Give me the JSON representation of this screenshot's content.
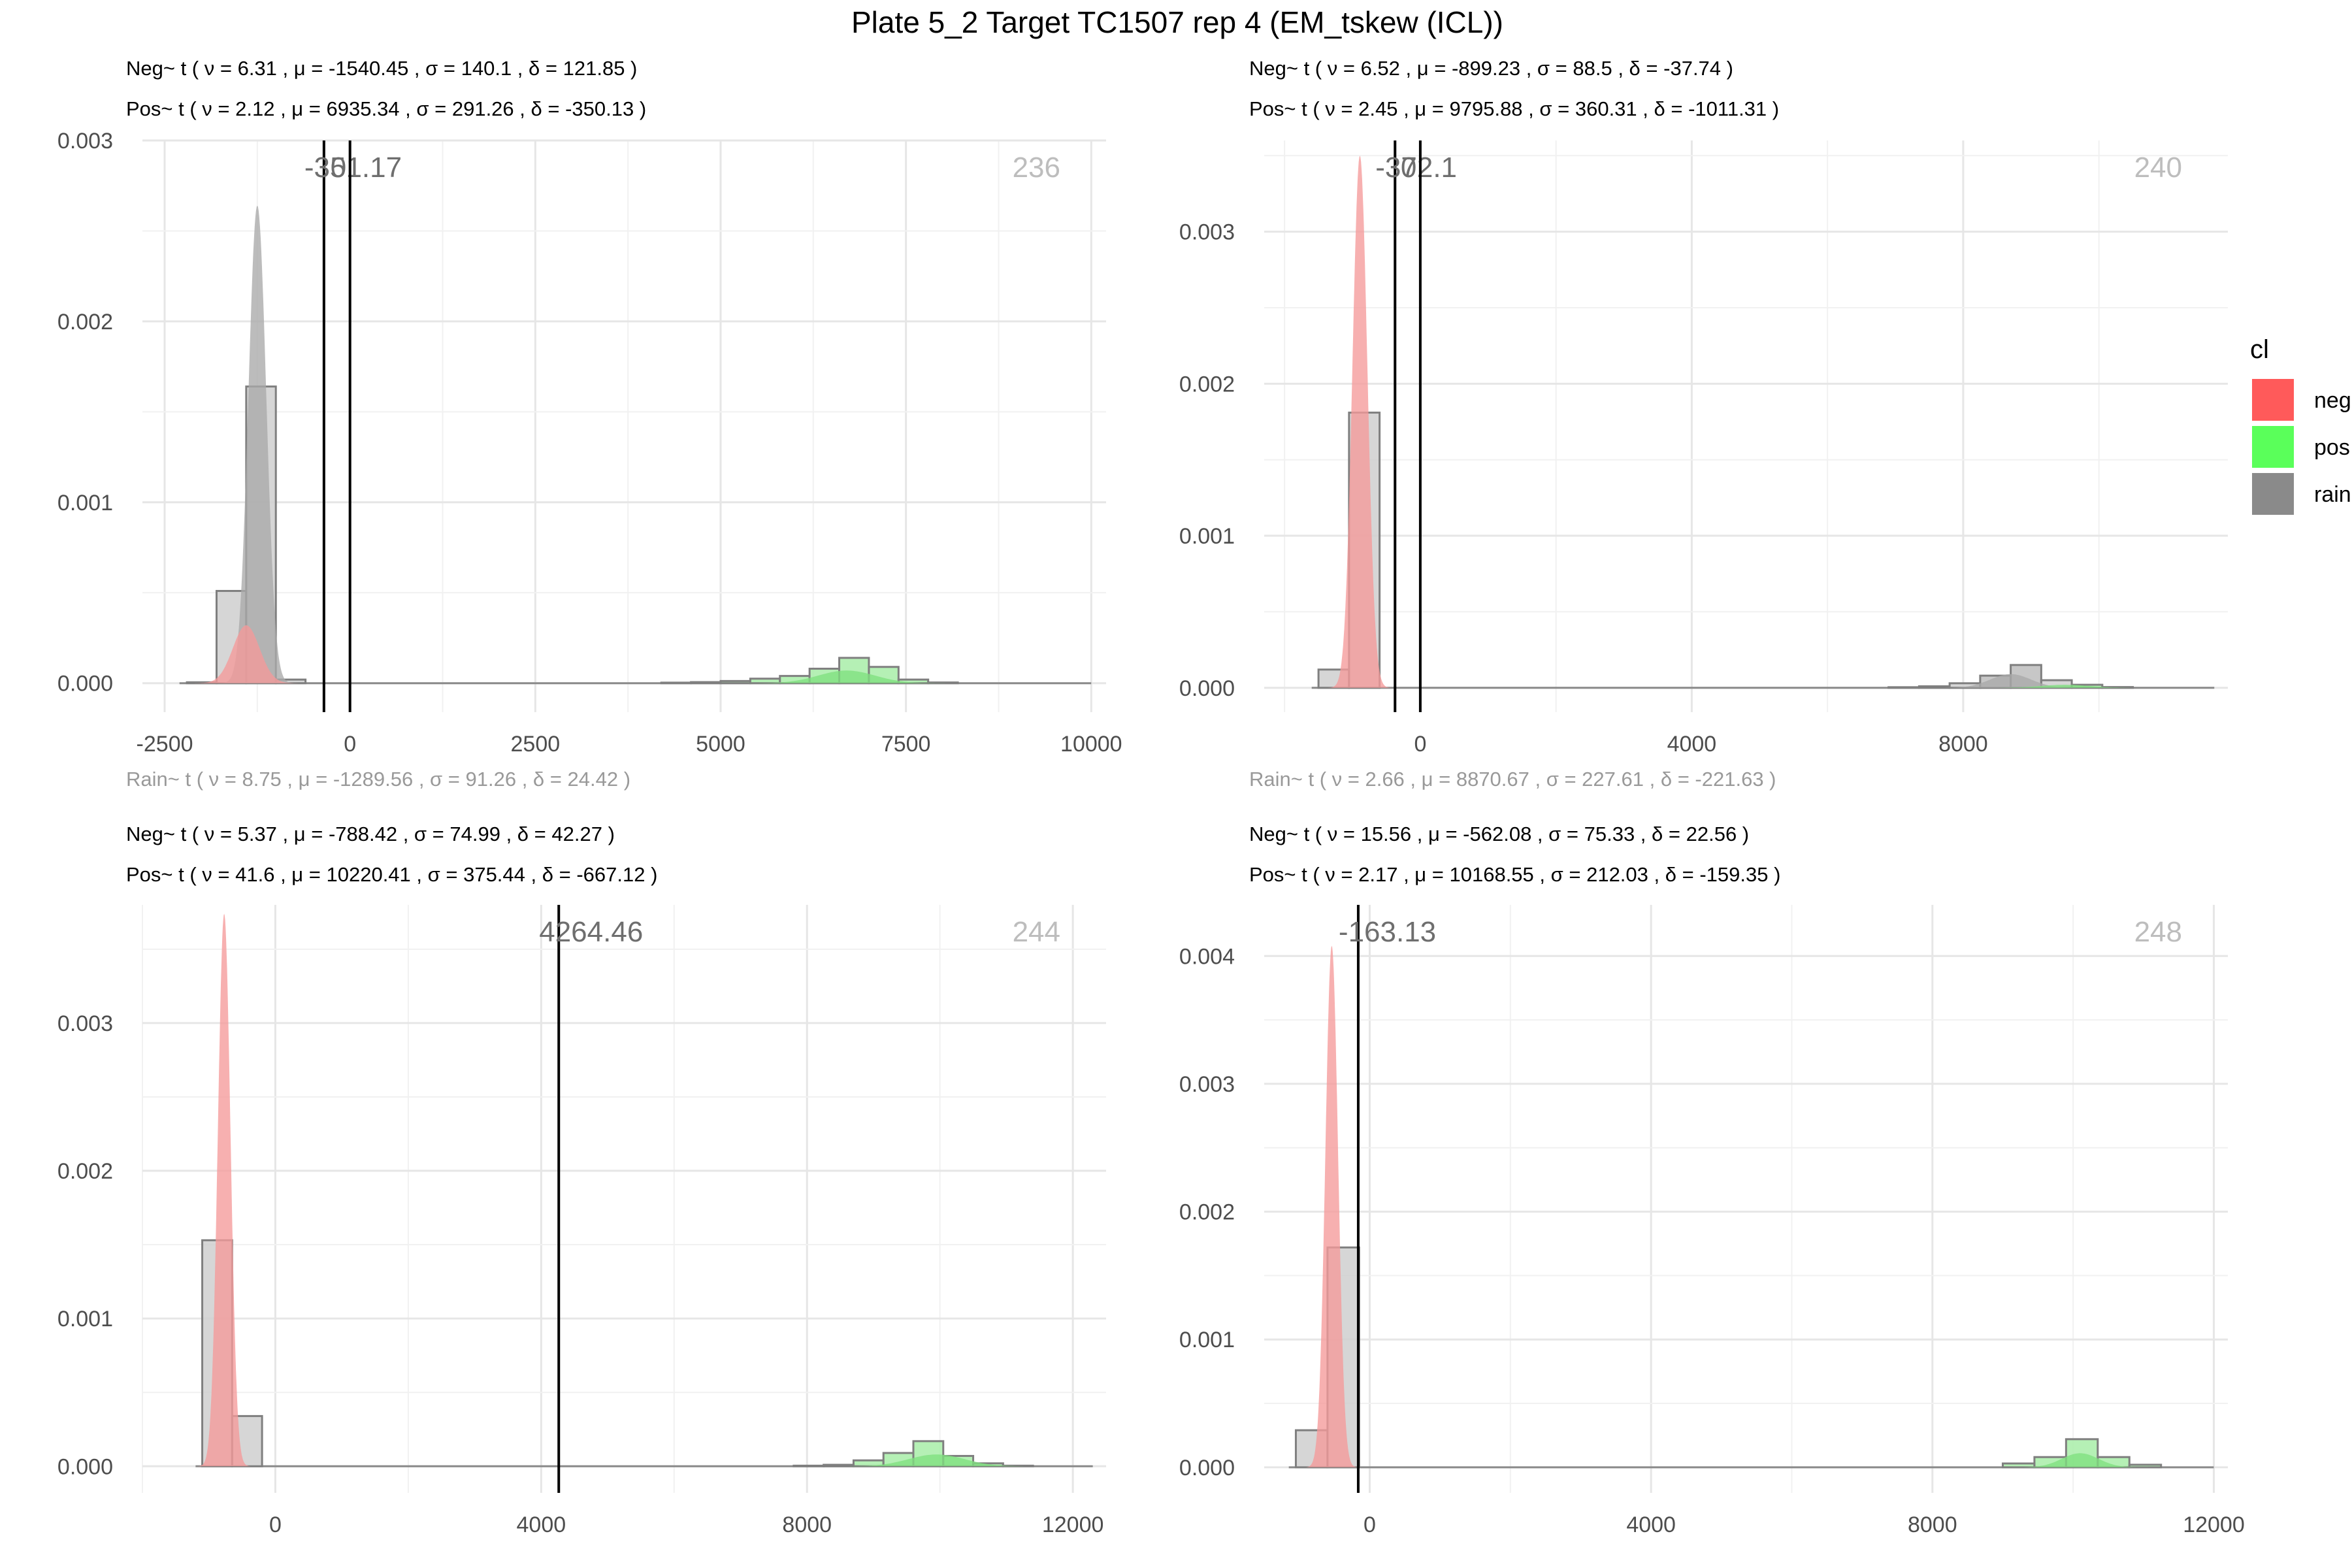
{
  "title": "Plate 5_2 Target TC1507 rep 4 (EM_tskew (ICL))",
  "legend": {
    "title": "cl",
    "items": [
      {
        "label": "neg",
        "color": "#ff5a5a"
      },
      {
        "label": "pos",
        "color": "#5aff5a"
      },
      {
        "label": "rain",
        "color": "#8a8a8a"
      }
    ]
  },
  "chart_data": [
    {
      "type": "histogram",
      "stats": {
        "neg": "Neg~ t ( ν = 6.31 , μ = -1540.45 , σ = 140.1 , δ = 121.85 )",
        "pos": "Pos~ t ( ν = 2.12 , μ = 6935.34 , σ = 291.26 , δ = -350.13 )",
        "rain": "Rain~ t ( ν = 8.75 , μ = -1289.56 , σ = 91.26 , δ = 24.42 )"
      },
      "count": "236",
      "thresholds": [
        {
          "x": -351.17,
          "label": "-351.17"
        },
        {
          "x": 0,
          "label": "0"
        }
      ],
      "xlim": [
        -2800,
        10200
      ],
      "ylim": [
        -0.00016,
        0.003
      ],
      "xticks": [
        {
          "v": -2500,
          "label": "-2500"
        },
        {
          "v": 0,
          "label": "0"
        },
        {
          "v": 2500,
          "label": "2500"
        },
        {
          "v": 5000,
          "label": "5000"
        },
        {
          "v": 7500,
          "label": "7500"
        },
        {
          "v": 10000,
          "label": "10000"
        }
      ],
      "yticks": [
        {
          "v": 0,
          "label": "0.000"
        },
        {
          "v": 0.001,
          "label": "0.001"
        },
        {
          "v": 0.002,
          "label": "0.002"
        },
        {
          "v": 0.003,
          "label": "0.003"
        }
      ],
      "bins": [
        {
          "x0": -2200,
          "x1": -1800,
          "y": 5e-06,
          "fill": "#cfcfcf"
        },
        {
          "x0": -1800,
          "x1": -1400,
          "y": 0.00051,
          "fill": "#cfcfcf"
        },
        {
          "x0": -1400,
          "x1": -1000,
          "y": 0.00164,
          "fill": "#cfcfcf"
        },
        {
          "x0": -1000,
          "x1": -600,
          "y": 2e-05,
          "fill": "#cfcfcf"
        },
        {
          "x0": 4200,
          "x1": 4600,
          "y": 3e-06,
          "fill": "#a8eda8"
        },
        {
          "x0": 4600,
          "x1": 5000,
          "y": 6e-06,
          "fill": "#a8eda8"
        },
        {
          "x0": 5000,
          "x1": 5400,
          "y": 1.2e-05,
          "fill": "#a8eda8"
        },
        {
          "x0": 5400,
          "x1": 5800,
          "y": 2.5e-05,
          "fill": "#a8eda8"
        },
        {
          "x0": 5800,
          "x1": 6200,
          "y": 4e-05,
          "fill": "#a8eda8"
        },
        {
          "x0": 6200,
          "x1": 6600,
          "y": 8e-05,
          "fill": "#a8eda8"
        },
        {
          "x0": 6600,
          "x1": 7000,
          "y": 0.00014,
          "fill": "#a8eda8"
        },
        {
          "x0": 7000,
          "x1": 7400,
          "y": 9e-05,
          "fill": "#a8eda8"
        },
        {
          "x0": 7400,
          "x1": 7800,
          "y": 2e-05,
          "fill": "#a8eda8"
        },
        {
          "x0": 7800,
          "x1": 8200,
          "y": 4e-06,
          "fill": "#a8eda8"
        }
      ],
      "densities": [
        {
          "cl": "rain",
          "mu": -1250,
          "sigma": 120,
          "peak": 0.00264
        },
        {
          "cl": "neg",
          "mu": -1400,
          "sigma": 180,
          "peak": 0.00032
        },
        {
          "cl": "pos",
          "mu": 6700,
          "sigma": 380,
          "peak": 7e-05
        }
      ]
    },
    {
      "type": "histogram",
      "stats": {
        "neg": "Neg~ t ( ν = 6.52 , μ = -899.23 , σ = 88.5 , δ = -37.74 )",
        "pos": "Pos~ t ( ν = 2.45 , μ = 9795.88 , σ = 360.31 , δ = -1011.31 )",
        "rain": "Rain~ t ( ν = 2.66 , μ = 8870.67 , σ = 227.61 , δ = -221.63 )"
      },
      "count": "240",
      "thresholds": [
        {
          "x": -372.1,
          "label": "-372.1"
        },
        {
          "x": 0,
          "label": "0"
        }
      ],
      "xlim": [
        -2300,
        11900
      ],
      "ylim": [
        -0.00016,
        0.0036
      ],
      "xticks": [
        {
          "v": 0,
          "label": "0"
        },
        {
          "v": 4000,
          "label": "4000"
        },
        {
          "v": 8000,
          "label": "8000"
        }
      ],
      "yticks": [
        {
          "v": 0,
          "label": "0.000"
        },
        {
          "v": 0.001,
          "label": "0.001"
        },
        {
          "v": 0.002,
          "label": "0.002"
        },
        {
          "v": 0.003,
          "label": "0.003"
        }
      ],
      "bins": [
        {
          "x0": -1500,
          "x1": -1050,
          "y": 0.00012,
          "fill": "#cfcfcf"
        },
        {
          "x0": -1050,
          "x1": -600,
          "y": 0.00181,
          "fill": "#cfcfcf"
        },
        {
          "x0": 6900,
          "x1": 7350,
          "y": 4e-06,
          "fill": "#cfcfcf"
        },
        {
          "x0": 7350,
          "x1": 7800,
          "y": 1e-05,
          "fill": "#cfcfcf"
        },
        {
          "x0": 7800,
          "x1": 8250,
          "y": 3e-05,
          "fill": "#cfcfcf"
        },
        {
          "x0": 8250,
          "x1": 8700,
          "y": 8e-05,
          "fill": "#bdbdbd"
        },
        {
          "x0": 8700,
          "x1": 9150,
          "y": 0.00015,
          "fill": "#bdbdbd"
        },
        {
          "x0": 9150,
          "x1": 9600,
          "y": 5e-05,
          "fill": "#cfcfcf"
        },
        {
          "x0": 9600,
          "x1": 10050,
          "y": 2e-05,
          "fill": "#a8eda8"
        },
        {
          "x0": 10050,
          "x1": 10500,
          "y": 5e-06,
          "fill": "#a8eda8"
        }
      ],
      "densities": [
        {
          "cl": "neg",
          "mu": -890,
          "sigma": 110,
          "peak": 0.0035
        },
        {
          "cl": "rain",
          "mu": 8700,
          "sigma": 300,
          "peak": 9e-05
        },
        {
          "cl": "pos",
          "mu": 9500,
          "sigma": 350,
          "peak": 2e-05
        }
      ]
    },
    {
      "type": "histogram",
      "stats": {
        "neg": "Neg~ t ( ν = 5.37 , μ = -788.42 , σ = 74.99 , δ = 42.27 )",
        "pos": "Pos~ t ( ν = 41.6 , μ = 10220.41 , σ = 375.44 , δ = -667.12 )"
      },
      "count": "244",
      "thresholds": [
        {
          "x": 4264.46,
          "label": "4264.46"
        }
      ],
      "xlim": [
        -2000,
        12500
      ],
      "ylim": [
        -0.00018,
        0.0038
      ],
      "xticks": [
        {
          "v": 0,
          "label": "0"
        },
        {
          "v": 4000,
          "label": "4000"
        },
        {
          "v": 8000,
          "label": "8000"
        },
        {
          "v": 12000,
          "label": "12000"
        }
      ],
      "yticks": [
        {
          "v": 0,
          "label": "0.000"
        },
        {
          "v": 0.001,
          "label": "0.001"
        },
        {
          "v": 0.002,
          "label": "0.002"
        },
        {
          "v": 0.003,
          "label": "0.003"
        }
      ],
      "bins": [
        {
          "x0": -1100,
          "x1": -650,
          "y": 0.00153,
          "fill": "#cfcfcf"
        },
        {
          "x0": -650,
          "x1": -200,
          "y": 0.00034,
          "fill": "#cfcfcf"
        },
        {
          "x0": 7800,
          "x1": 8250,
          "y": 4e-06,
          "fill": "#a8eda8"
        },
        {
          "x0": 8250,
          "x1": 8700,
          "y": 1e-05,
          "fill": "#a8eda8"
        },
        {
          "x0": 8700,
          "x1": 9150,
          "y": 4e-05,
          "fill": "#a8eda8"
        },
        {
          "x0": 9150,
          "x1": 9600,
          "y": 9e-05,
          "fill": "#a8eda8"
        },
        {
          "x0": 9600,
          "x1": 10050,
          "y": 0.00017,
          "fill": "#a8eda8"
        },
        {
          "x0": 10050,
          "x1": 10500,
          "y": 7e-05,
          "fill": "#a8eda8"
        },
        {
          "x0": 10500,
          "x1": 10950,
          "y": 2e-05,
          "fill": "#a8eda8"
        },
        {
          "x0": 10950,
          "x1": 11400,
          "y": 4e-06,
          "fill": "#a8eda8"
        }
      ],
      "densities": [
        {
          "cl": "neg",
          "mu": -770,
          "sigma": 95,
          "peak": 0.00374
        },
        {
          "cl": "pos",
          "mu": 9950,
          "sigma": 420,
          "peak": 8e-05
        }
      ]
    },
    {
      "type": "histogram",
      "stats": {
        "neg": "Neg~ t ( ν = 15.56 , μ = -562.08 , σ = 75.33 , δ = 22.56 )",
        "pos": "Pos~ t ( ν = 2.17 , μ = 10168.55 , σ = 212.03 , δ = -159.35 )"
      },
      "count": "248",
      "thresholds": [
        {
          "x": -163.13,
          "label": "-163.13"
        }
      ],
      "xlim": [
        -1500,
        12200
      ],
      "ylim": [
        -0.0002,
        0.0044
      ],
      "xticks": [
        {
          "v": 0,
          "label": "0"
        },
        {
          "v": 4000,
          "label": "4000"
        },
        {
          "v": 8000,
          "label": "8000"
        },
        {
          "v": 12000,
          "label": "12000"
        }
      ],
      "yticks": [
        {
          "v": 0,
          "label": "0.000"
        },
        {
          "v": 0.001,
          "label": "0.001"
        },
        {
          "v": 0.002,
          "label": "0.002"
        },
        {
          "v": 0.003,
          "label": "0.003"
        },
        {
          "v": 0.004,
          "label": "0.004"
        }
      ],
      "bins": [
        {
          "x0": -1050,
          "x1": -600,
          "y": 0.00029,
          "fill": "#cfcfcf"
        },
        {
          "x0": -600,
          "x1": -150,
          "y": 0.00172,
          "fill": "#cfcfcf"
        },
        {
          "x0": 9000,
          "x1": 9450,
          "y": 3e-05,
          "fill": "#a8eda8"
        },
        {
          "x0": 9450,
          "x1": 9900,
          "y": 8e-05,
          "fill": "#a8eda8"
        },
        {
          "x0": 9900,
          "x1": 10350,
          "y": 0.00022,
          "fill": "#a8eda8"
        },
        {
          "x0": 10350,
          "x1": 10800,
          "y": 8e-05,
          "fill": "#a8eda8"
        },
        {
          "x0": 10800,
          "x1": 11250,
          "y": 2e-05,
          "fill": "#a8eda8"
        }
      ],
      "densities": [
        {
          "cl": "neg",
          "mu": -540,
          "sigma": 90,
          "peak": 0.00408
        },
        {
          "cl": "pos",
          "mu": 10100,
          "sigma": 260,
          "peak": 0.00011
        }
      ]
    }
  ]
}
